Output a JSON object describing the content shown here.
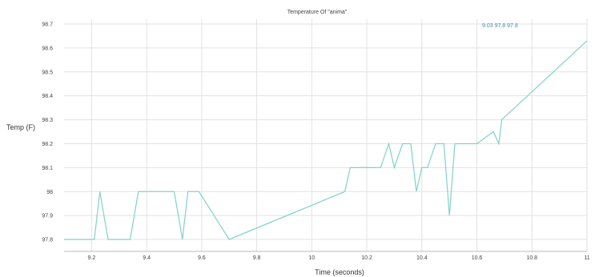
{
  "chart_data": {
    "type": "line",
    "title": "Temperature Of \"anima\"",
    "xlabel": "Time (seconds)",
    "ylabel": "Temp (F)",
    "xlim": [
      9.1,
      11
    ],
    "ylim": [
      97.75,
      98.72
    ],
    "x_ticks": [
      9.2,
      9.4,
      9.6,
      9.8,
      10,
      10.2,
      10.4,
      10.6,
      10.8,
      11
    ],
    "x_tick_labels": [
      "9.2",
      "9.4",
      "9.6",
      "9.8",
      "10",
      "10.2",
      "10.4",
      "10.6",
      "10.8",
      "11"
    ],
    "y_ticks": [
      97.8,
      97.9,
      98,
      98.1,
      98.2,
      98.3,
      98.4,
      98.5,
      98.6,
      98.7
    ],
    "y_tick_labels": [
      "97.8",
      "97.9",
      "98",
      "98.1",
      "98.2",
      "98.3",
      "98.4",
      "98.5",
      "98.6",
      "98.7"
    ],
    "grid": true,
    "line_color": "#7fd3c8",
    "series": [
      {
        "x": [
          9.1,
          9.21,
          9.23,
          9.26,
          9.34,
          9.37,
          9.5,
          9.53,
          9.55,
          9.59,
          9.7,
          10.12,
          10.14,
          10.25,
          10.28,
          10.3,
          10.33,
          10.36,
          10.38,
          10.4,
          10.42,
          10.45,
          10.48,
          10.5,
          10.52,
          10.54,
          10.6,
          10.66,
          10.68,
          10.69,
          11.0
        ],
        "y": [
          97.8,
          97.8,
          98.0,
          97.8,
          97.8,
          98.0,
          98.0,
          97.8,
          98.0,
          98.0,
          97.8,
          98.0,
          98.1,
          98.1,
          98.2,
          98.1,
          98.2,
          98.2,
          98.0,
          98.1,
          98.1,
          98.2,
          98.2,
          97.9,
          98.2,
          98.2,
          98.2,
          98.25,
          98.2,
          98.3,
          98.63
        ]
      }
    ],
    "readout": "9.03  97.8  97.8"
  }
}
